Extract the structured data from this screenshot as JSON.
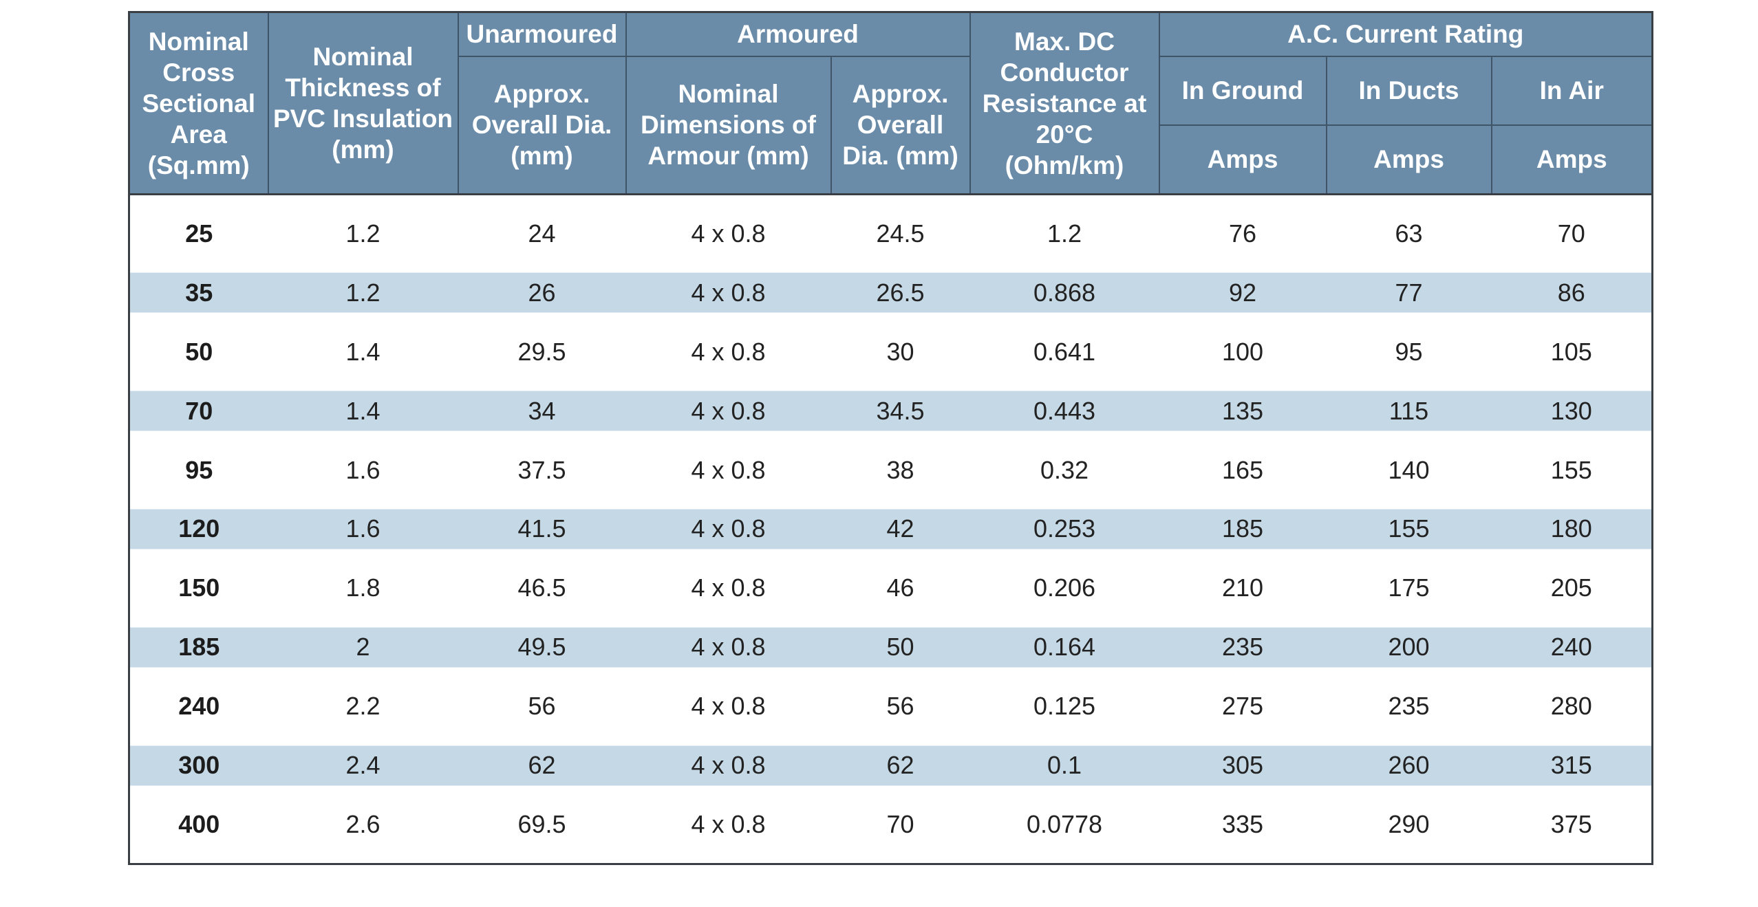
{
  "headers": {
    "cross_section": "Nominal Cross Sectional Area (Sq.mm)",
    "pvc_thickness": "Nominal Thickness of PVC Insulation (mm)",
    "unarmoured": "Unarmoured",
    "unarmoured_dia": "Approx. Overall Dia. (mm)",
    "armoured": "Armoured",
    "armour_dims": "Nominal Dimensions of Armour (mm)",
    "armoured_dia": "Approx. Overall Dia. (mm)",
    "max_dc_resistance": "Max. DC Conductor Resistance at 20°C (Ohm/km)",
    "ac_rating": "A.C. Current Rating",
    "in_ground": "In Ground",
    "in_ducts": "In Ducts",
    "in_air": "In Air",
    "amps_ground": "Amps",
    "amps_ducts": "Amps",
    "amps_air": "Amps"
  },
  "rows": [
    [
      "25",
      "1.2",
      "24",
      "4 x 0.8",
      "24.5",
      "1.2",
      "76",
      "63",
      "70"
    ],
    [
      "35",
      "1.2",
      "26",
      "4 x 0.8",
      "26.5",
      "0.868",
      "92",
      "77",
      "86"
    ],
    [
      "50",
      "1.4",
      "29.5",
      "4 x 0.8",
      "30",
      "0.641",
      "100",
      "95",
      "105"
    ],
    [
      "70",
      "1.4",
      "34",
      "4 x 0.8",
      "34.5",
      "0.443",
      "135",
      "115",
      "130"
    ],
    [
      "95",
      "1.6",
      "37.5",
      "4 x 0.8",
      "38",
      "0.32",
      "165",
      "140",
      "155"
    ],
    [
      "120",
      "1.6",
      "41.5",
      "4 x 0.8",
      "42",
      "0.253",
      "185",
      "155",
      "180"
    ],
    [
      "150",
      "1.8",
      "46.5",
      "4 x 0.8",
      "46",
      "0.206",
      "210",
      "175",
      "205"
    ],
    [
      "185",
      "2",
      "49.5",
      "4 x 0.8",
      "50",
      "0.164",
      "235",
      "200",
      "240"
    ],
    [
      "240",
      "2.2",
      "56",
      "4 x 0.8",
      "56",
      "0.125",
      "275",
      "235",
      "280"
    ],
    [
      "300",
      "2.4",
      "62",
      "4 x 0.8",
      "62",
      "0.1",
      "305",
      "260",
      "315"
    ],
    [
      "400",
      "2.6",
      "69.5",
      "4 x 0.8",
      "70",
      "0.0778",
      "335",
      "290",
      "375"
    ]
  ],
  "colors": {
    "header_bg": "#6a8ca9",
    "header_text": "#ffffff",
    "stripe_bg": "#c5d8e5",
    "border": "#3a3f45"
  }
}
